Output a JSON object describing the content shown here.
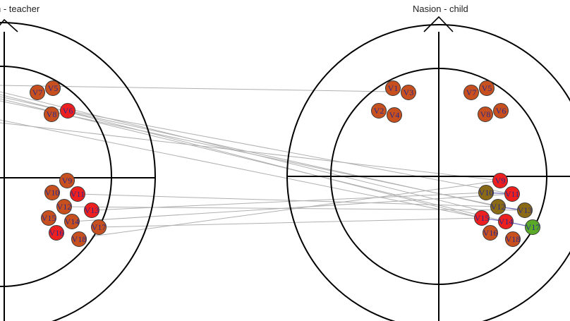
{
  "diagram": {
    "left_head": {
      "title": "n - teacher"
    },
    "right_head": {
      "title": "Nasion - child"
    },
    "colors": {
      "line": "#000000",
      "link": "#b0b0b0",
      "intra_link": "#7070c0",
      "node_stroke": "#3a3a3a",
      "label": "#2a2a8c",
      "red": "#ee1f1f",
      "orange": "#c8501e",
      "olive": "#8a6a14",
      "green": "#5aaa28"
    },
    "teacher_nodes": [
      {
        "id": "V7",
        "color": "orange"
      },
      {
        "id": "V5",
        "color": "orange"
      },
      {
        "id": "V8",
        "color": "orange"
      },
      {
        "id": "V6",
        "color": "red"
      },
      {
        "id": "V9",
        "color": "orange"
      },
      {
        "id": "V10",
        "color": "orange"
      },
      {
        "id": "V11",
        "color": "red"
      },
      {
        "id": "V12",
        "color": "orange"
      },
      {
        "id": "V13",
        "color": "red"
      },
      {
        "id": "V15",
        "color": "orange"
      },
      {
        "id": "V14",
        "color": "orange"
      },
      {
        "id": "V17",
        "color": "orange"
      },
      {
        "id": "V16",
        "color": "red"
      },
      {
        "id": "V18",
        "color": "orange"
      }
    ],
    "child_nodes": [
      {
        "id": "V1",
        "color": "orange"
      },
      {
        "id": "V3",
        "color": "orange"
      },
      {
        "id": "V2",
        "color": "orange"
      },
      {
        "id": "V4",
        "color": "orange"
      },
      {
        "id": "V7",
        "color": "orange"
      },
      {
        "id": "V5",
        "color": "orange"
      },
      {
        "id": "V8",
        "color": "orange"
      },
      {
        "id": "V6",
        "color": "orange"
      },
      {
        "id": "V9",
        "color": "red"
      },
      {
        "id": "V10",
        "color": "olive"
      },
      {
        "id": "V11",
        "color": "red"
      },
      {
        "id": "V12",
        "color": "olive"
      },
      {
        "id": "V13",
        "color": "olive"
      },
      {
        "id": "V15",
        "color": "red"
      },
      {
        "id": "V14",
        "color": "red"
      },
      {
        "id": "V17",
        "color": "green"
      },
      {
        "id": "V16",
        "color": "orange"
      },
      {
        "id": "V18",
        "color": "orange"
      }
    ]
  }
}
